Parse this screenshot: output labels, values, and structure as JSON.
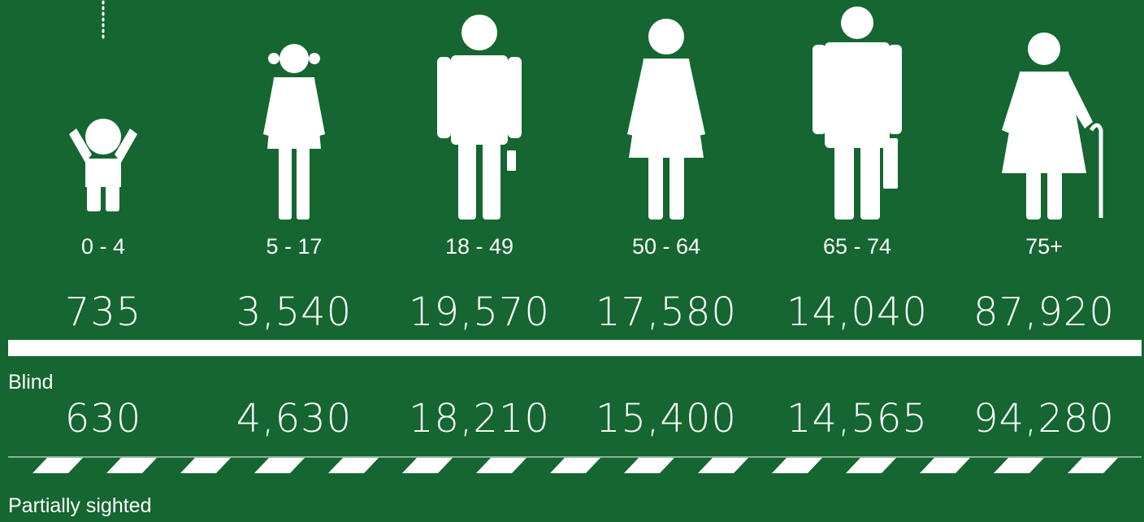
{
  "groups": [
    {
      "age": "0 - 4",
      "row1": "735",
      "row2": "630"
    },
    {
      "age": "5 - 17",
      "row1": "3,540",
      "row2": "4,630"
    },
    {
      "age": "18 - 49",
      "row1": "19,570",
      "row2": "18,210"
    },
    {
      "age": "50 - 64",
      "row1": "17,580",
      "row2": "15,400"
    },
    {
      "age": "65 - 74",
      "row1": "14,040",
      "row2": "14,565"
    },
    {
      "age": "75+",
      "row1": "87,920",
      "row2": "94,280"
    }
  ],
  "legend": {
    "solid": "Blind",
    "dashed": "Partially sighted"
  }
}
